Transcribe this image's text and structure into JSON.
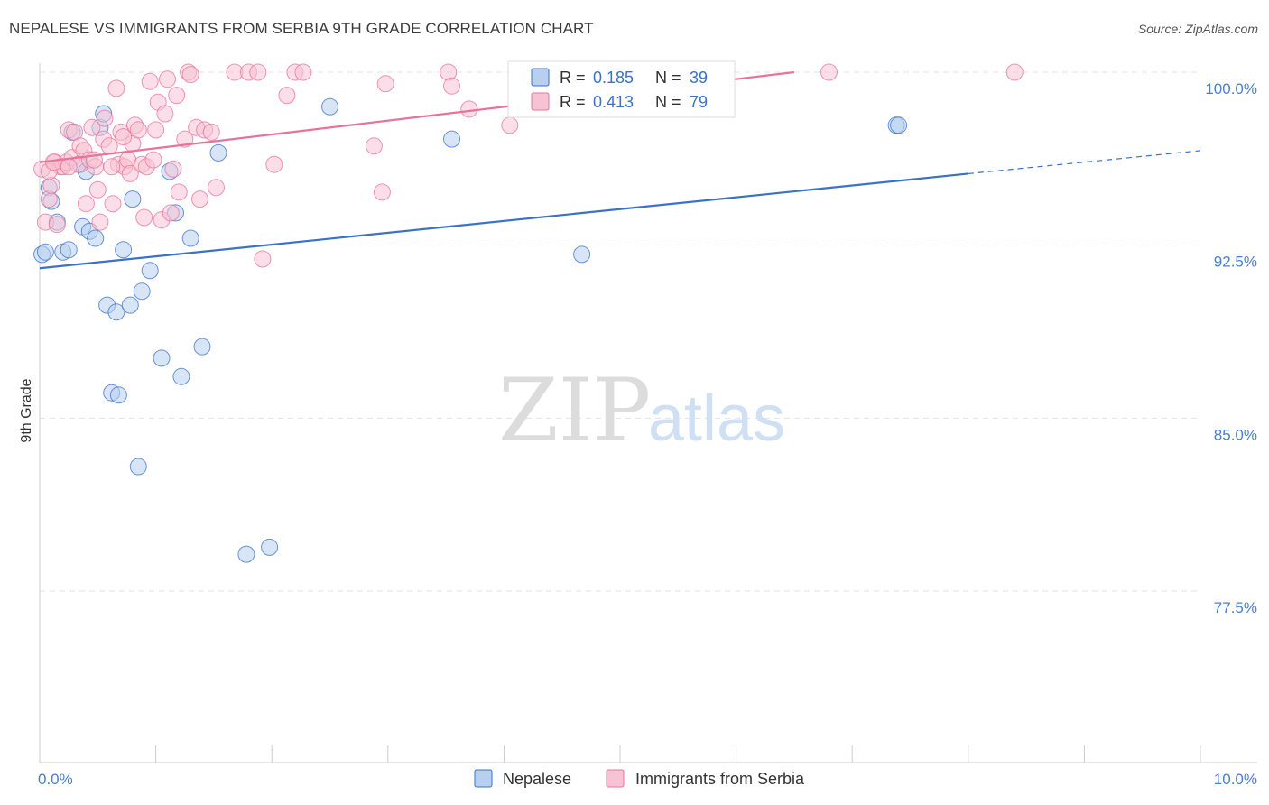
{
  "header": {
    "title": "NEPALESE VS IMMIGRANTS FROM SERBIA 9TH GRADE CORRELATION CHART",
    "source": "Source: ZipAtlas.com"
  },
  "watermark": {
    "part1": "ZIP",
    "part2": "atlas"
  },
  "colors": {
    "blue": "#3a72c9",
    "pink": "#e8739a",
    "blue_fill": "#b8d0f0",
    "pink_fill": "#f7c3d4"
  },
  "legend": {
    "r_label": "R =",
    "n_label": "N =",
    "series": [
      {
        "r": "0.185",
        "n": "39"
      },
      {
        "r": "0.413",
        "n": "79"
      }
    ]
  },
  "chart_data": {
    "type": "scatter",
    "title": "NEPALESE VS IMMIGRANTS FROM SERBIA 9TH GRADE CORRELATION CHART",
    "xlabel": "",
    "ylabel": "9th Grade",
    "xlim": [
      0,
      10
    ],
    "ylim": [
      70.0,
      100.7
    ],
    "x_tick_labels": [
      {
        "v": 0,
        "label": "0.0%"
      },
      {
        "v": 10,
        "label": "10.0%"
      }
    ],
    "y_ticks": [
      {
        "v": 100.0,
        "label": "100.0%"
      },
      {
        "v": 92.5,
        "label": "92.5%"
      },
      {
        "v": 85.0,
        "label": "85.0%"
      },
      {
        "v": 77.5,
        "label": "77.5%"
      }
    ],
    "series": [
      {
        "name": "Nepalese",
        "color": "#3a72c9",
        "trend": {
          "x0": 0,
          "y0": 91.5,
          "x1": 8.0,
          "y1": 95.6,
          "dash_x1": 10,
          "dash_y1": 96.6
        },
        "points": [
          [
            0.02,
            92.1
          ],
          [
            0.08,
            95.0
          ],
          [
            0.1,
            94.4
          ],
          [
            0.15,
            93.5
          ],
          [
            0.2,
            92.2
          ],
          [
            0.25,
            92.3
          ],
          [
            0.28,
            97.4
          ],
          [
            0.35,
            96.0
          ],
          [
            0.37,
            93.3
          ],
          [
            0.4,
            95.7
          ],
          [
            0.43,
            93.1
          ],
          [
            0.48,
            92.8
          ],
          [
            0.52,
            97.6
          ],
          [
            0.55,
            98.2
          ],
          [
            0.58,
            89.9
          ],
          [
            0.62,
            86.1
          ],
          [
            0.66,
            89.6
          ],
          [
            0.68,
            86.0
          ],
          [
            0.72,
            92.3
          ],
          [
            0.78,
            89.9
          ],
          [
            0.8,
            94.5
          ],
          [
            0.85,
            82.9
          ],
          [
            0.88,
            90.5
          ],
          [
            0.95,
            91.4
          ],
          [
            1.05,
            87.6
          ],
          [
            1.12,
            95.7
          ],
          [
            1.17,
            93.9
          ],
          [
            1.22,
            86.8
          ],
          [
            1.3,
            92.8
          ],
          [
            1.4,
            88.1
          ],
          [
            1.54,
            96.5
          ],
          [
            1.78,
            79.1
          ],
          [
            1.98,
            79.4
          ],
          [
            2.5,
            98.5
          ],
          [
            3.55,
            97.1
          ],
          [
            4.67,
            92.1
          ],
          [
            7.38,
            97.7
          ],
          [
            7.4,
            97.7
          ],
          [
            0.05,
            92.2
          ]
        ]
      },
      {
        "name": "Immigrants from Serbia",
        "color": "#e8739a",
        "trend": {
          "x0": 0,
          "y0": 96.1,
          "x1": 6.5,
          "y1": 100.0
        },
        "points": [
          [
            0.02,
            95.8
          ],
          [
            0.05,
            93.5
          ],
          [
            0.08,
            94.5
          ],
          [
            0.1,
            95.1
          ],
          [
            0.13,
            96.1
          ],
          [
            0.18,
            95.9
          ],
          [
            0.2,
            95.9
          ],
          [
            0.23,
            96.1
          ],
          [
            0.25,
            97.5
          ],
          [
            0.28,
            96.3
          ],
          [
            0.3,
            97.4
          ],
          [
            0.33,
            96.0
          ],
          [
            0.35,
            96.8
          ],
          [
            0.38,
            96.6
          ],
          [
            0.4,
            94.3
          ],
          [
            0.43,
            96.2
          ],
          [
            0.45,
            97.6
          ],
          [
            0.48,
            95.9
          ],
          [
            0.5,
            94.9
          ],
          [
            0.52,
            93.5
          ],
          [
            0.55,
            97.1
          ],
          [
            0.56,
            98.0
          ],
          [
            0.6,
            96.8
          ],
          [
            0.63,
            94.3
          ],
          [
            0.66,
            99.3
          ],
          [
            0.68,
            96.0
          ],
          [
            0.7,
            97.4
          ],
          [
            0.73,
            95.9
          ],
          [
            0.76,
            96.2
          ],
          [
            0.78,
            95.6
          ],
          [
            0.8,
            96.9
          ],
          [
            0.82,
            97.7
          ],
          [
            0.85,
            97.5
          ],
          [
            0.88,
            96.0
          ],
          [
            0.9,
            93.7
          ],
          [
            0.92,
            95.9
          ],
          [
            0.95,
            99.6
          ],
          [
            0.98,
            96.2
          ],
          [
            1.0,
            97.5
          ],
          [
            1.02,
            98.7
          ],
          [
            1.05,
            93.6
          ],
          [
            1.08,
            98.2
          ],
          [
            1.1,
            99.7
          ],
          [
            1.13,
            93.9
          ],
          [
            1.15,
            95.8
          ],
          [
            1.18,
            99.0
          ],
          [
            1.2,
            94.8
          ],
          [
            1.25,
            97.1
          ],
          [
            1.28,
            100.0
          ],
          [
            1.3,
            99.9
          ],
          [
            1.35,
            97.6
          ],
          [
            1.38,
            94.5
          ],
          [
            1.42,
            97.5
          ],
          [
            1.48,
            97.4
          ],
          [
            1.52,
            95.0
          ],
          [
            1.68,
            100.0
          ],
          [
            1.8,
            100.0
          ],
          [
            1.88,
            100.0
          ],
          [
            1.92,
            91.9
          ],
          [
            2.02,
            96.0
          ],
          [
            2.13,
            99.0
          ],
          [
            2.2,
            100.0
          ],
          [
            2.27,
            100.0
          ],
          [
            2.88,
            96.8
          ],
          [
            2.95,
            94.8
          ],
          [
            2.98,
            99.5
          ],
          [
            3.52,
            100.0
          ],
          [
            3.55,
            99.4
          ],
          [
            3.7,
            98.4
          ],
          [
            4.05,
            97.7
          ],
          [
            6.8,
            100.0
          ],
          [
            8.4,
            100.0
          ],
          [
            0.15,
            93.4
          ],
          [
            0.08,
            95.7
          ],
          [
            0.12,
            96.1
          ],
          [
            0.62,
            95.9
          ],
          [
            0.25,
            95.9
          ],
          [
            0.72,
            97.2
          ],
          [
            0.47,
            96.2
          ]
        ]
      }
    ]
  },
  "bottom_legend": [
    {
      "label": "Nepalese"
    },
    {
      "label": "Immigrants from Serbia"
    }
  ]
}
